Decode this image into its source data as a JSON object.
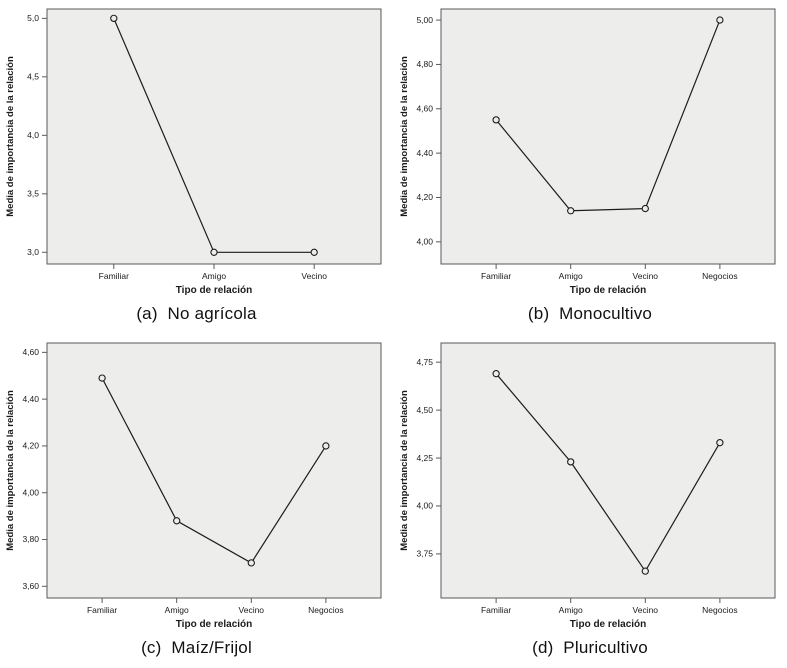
{
  "figure": {
    "description": "Four SPSS-style line charts of mean relationship importance by relationship type",
    "colors": {
      "page_bg": "#ffffff",
      "plot_bg": "#ededeb",
      "frame": "#595959",
      "line": "#1c1c1c",
      "marker_fill": "#ededeb",
      "text": "#1a1a1a"
    }
  },
  "chart_data": [
    {
      "id": "a",
      "type": "line",
      "caption": "(a)  No agrícola",
      "title": "",
      "xlabel": "Tipo de relación",
      "ylabel": "Media de importancia de la relación",
      "categories": [
        "Familiar",
        "Amigo",
        "Vecino"
      ],
      "values": [
        5.0,
        3.0,
        3.0
      ],
      "yticks": [
        3.0,
        3.5,
        4.0,
        4.5,
        5.0
      ],
      "ytick_labels": [
        "3,0",
        "3,5",
        "4,0",
        "4,5",
        "5,0"
      ],
      "ylim": [
        2.9,
        5.08
      ],
      "grid": false,
      "legend": false
    },
    {
      "id": "b",
      "type": "line",
      "caption": "(b)  Monocultivo",
      "title": "",
      "xlabel": "Tipo de relación",
      "ylabel": "Media de importancia de la relación",
      "categories": [
        "Familiar",
        "Amigo",
        "Vecino",
        "Negocios"
      ],
      "values": [
        4.55,
        4.14,
        4.15,
        5.0
      ],
      "yticks": [
        4.0,
        4.2,
        4.4,
        4.6,
        4.8,
        5.0
      ],
      "ytick_labels": [
        "4,00",
        "4,20",
        "4,40",
        "4,60",
        "4,80",
        "5,00"
      ],
      "ylim": [
        3.9,
        5.05
      ],
      "grid": false,
      "legend": false
    },
    {
      "id": "c",
      "type": "line",
      "caption": "(c)  Maíz/Frijol",
      "title": "",
      "xlabel": "Tipo de relación",
      "ylabel": "Media de importancia de la relación",
      "categories": [
        "Familiar",
        "Amigo",
        "Vecino",
        "Negocios"
      ],
      "values": [
        4.49,
        3.88,
        3.7,
        4.2
      ],
      "yticks": [
        3.6,
        3.8,
        4.0,
        4.2,
        4.4,
        4.6
      ],
      "ytick_labels": [
        "3,60",
        "3,80",
        "4,00",
        "4,20",
        "4,40",
        "4,60"
      ],
      "ylim": [
        3.55,
        4.64
      ],
      "grid": false,
      "legend": false
    },
    {
      "id": "d",
      "type": "line",
      "caption": "(d)  Pluricultivo",
      "title": "",
      "xlabel": "Tipo de relación",
      "ylabel": "Media de importancia de la relación",
      "categories": [
        "Familiar",
        "Amigo",
        "Vecino",
        "Negocios"
      ],
      "values": [
        4.69,
        4.23,
        3.66,
        4.33
      ],
      "yticks": [
        3.75,
        4.0,
        4.25,
        4.5,
        4.75
      ],
      "ytick_labels": [
        "3,75",
        "4,00",
        "4,25",
        "4,50",
        "4,75"
      ],
      "ylim": [
        3.52,
        4.85
      ],
      "grid": false,
      "legend": false
    }
  ]
}
